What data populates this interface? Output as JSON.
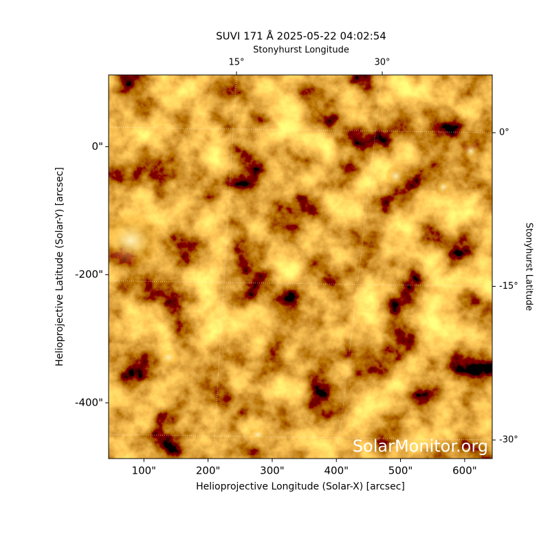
{
  "chart_data": {
    "type": "image",
    "title": "SUVI 171 Å 2025-05-22 04:02:54",
    "xlabel": "Helioprojective Longitude (Solar-X) [arcsec]",
    "ylabel": "Helioprojective Latitude (Solar-Y) [arcsec]",
    "top_label": "Stonyhurst Longitude",
    "right_label": "Stonyhurst Latitude",
    "watermark": "SolarMonitor.org",
    "xlim": [
      45,
      643
    ],
    "ylim": [
      -487,
      112
    ],
    "xticks": [
      {
        "value": 100,
        "label": "100\""
      },
      {
        "value": 200,
        "label": "200\""
      },
      {
        "value": 300,
        "label": "300\""
      },
      {
        "value": 400,
        "label": "400\""
      },
      {
        "value": 500,
        "label": "500\""
      },
      {
        "value": 600,
        "label": "600\""
      }
    ],
    "yticks": [
      {
        "value": 0,
        "label": "0\""
      },
      {
        "value": -200,
        "label": "-200\""
      },
      {
        "value": -400,
        "label": "-400\""
      }
    ],
    "lon_ticks": [
      {
        "value": 15,
        "label": "15°"
      },
      {
        "value": 30,
        "label": "30°"
      }
    ],
    "lat_ticks": [
      {
        "value": 0,
        "label": "0°"
      },
      {
        "value": -15,
        "label": "-15°"
      },
      {
        "value": -30,
        "label": "-30°"
      }
    ],
    "grid": true
  }
}
